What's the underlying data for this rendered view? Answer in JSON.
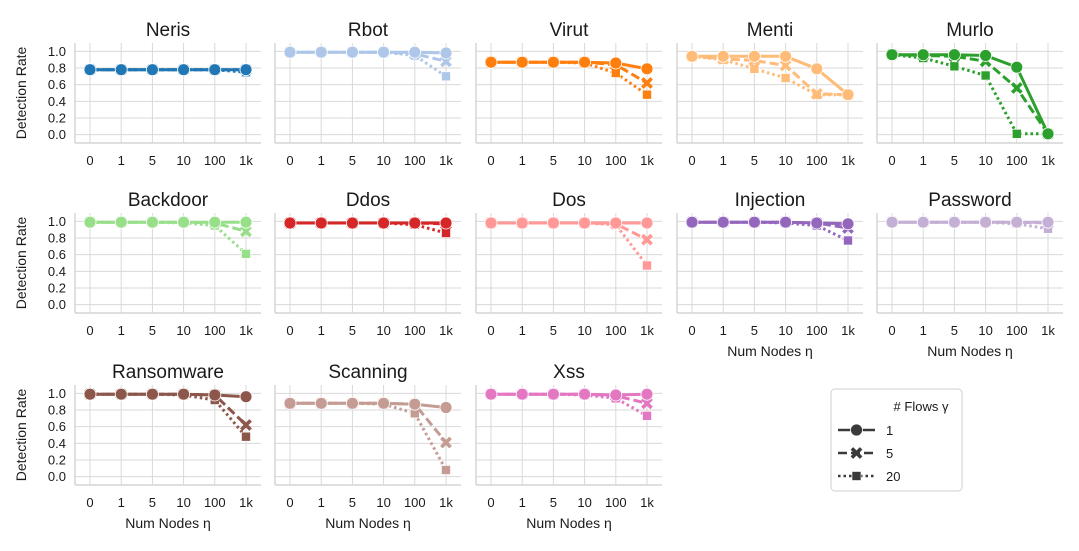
{
  "chart_data": {
    "type": "line",
    "x_categories": [
      "0",
      "1",
      "5",
      "10",
      "100",
      "1k"
    ],
    "xlabel": "Num Nodes η",
    "ylabel": "Detection Rate",
    "ylim": [
      -0.1,
      1.1
    ],
    "yticks": [
      "0.0",
      "0.2",
      "0.4",
      "0.6",
      "0.8",
      "1.0"
    ],
    "grid": true,
    "legend": {
      "title": "# Flows γ",
      "position": "bottom-right",
      "entries": [
        {
          "label": "1",
          "marker": "circle",
          "dash": "solid"
        },
        {
          "label": "5",
          "marker": "x",
          "dash": "dashed"
        },
        {
          "label": "20",
          "marker": "square",
          "dash": "dotted"
        }
      ]
    },
    "panels": [
      {
        "title": "Neris",
        "color": "#2077b4",
        "series": [
          {
            "name": "1",
            "values": [
              0.78,
              0.78,
              0.78,
              0.78,
              0.78,
              0.78
            ]
          },
          {
            "name": "5",
            "values": [
              0.78,
              0.78,
              0.78,
              0.78,
              0.78,
              0.78
            ]
          },
          {
            "name": "20",
            "values": [
              0.78,
              0.78,
              0.78,
              0.78,
              0.78,
              0.75
            ]
          }
        ]
      },
      {
        "title": "Rbot",
        "color": "#aec7e8",
        "series": [
          {
            "name": "1",
            "values": [
              0.99,
              0.99,
              0.99,
              0.99,
              0.99,
              0.98
            ]
          },
          {
            "name": "5",
            "values": [
              0.99,
              0.99,
              0.99,
              0.99,
              0.97,
              0.88
            ]
          },
          {
            "name": "20",
            "values": [
              0.99,
              0.99,
              0.99,
              0.99,
              0.95,
              0.7
            ]
          }
        ]
      },
      {
        "title": "Virut",
        "color": "#ff7f0e",
        "series": [
          {
            "name": "1",
            "values": [
              0.87,
              0.87,
              0.87,
              0.87,
              0.86,
              0.79
            ]
          },
          {
            "name": "5",
            "values": [
              0.87,
              0.87,
              0.87,
              0.87,
              0.84,
              0.62
            ]
          },
          {
            "name": "20",
            "values": [
              0.87,
              0.87,
              0.87,
              0.86,
              0.74,
              0.48
            ]
          }
        ]
      },
      {
        "title": "Menti",
        "color": "#ffbb78",
        "series": [
          {
            "name": "1",
            "values": [
              0.94,
              0.94,
              0.94,
              0.94,
              0.79,
              0.48
            ]
          },
          {
            "name": "5",
            "values": [
              0.94,
              0.91,
              0.89,
              0.83,
              0.49,
              0.48
            ]
          },
          {
            "name": "20",
            "values": [
              0.94,
              0.9,
              0.79,
              0.68,
              0.48,
              0.48
            ]
          }
        ]
      },
      {
        "title": "Murlo",
        "color": "#2ca02c",
        "series": [
          {
            "name": "1",
            "values": [
              0.96,
              0.96,
              0.96,
              0.95,
              0.81,
              0.01
            ]
          },
          {
            "name": "5",
            "values": [
              0.96,
              0.95,
              0.94,
              0.88,
              0.56,
              0.01
            ]
          },
          {
            "name": "20",
            "values": [
              0.96,
              0.92,
              0.82,
              0.71,
              0.01,
              0.01
            ]
          }
        ]
      },
      {
        "title": "Backdoor",
        "color": "#98df8a",
        "series": [
          {
            "name": "1",
            "values": [
              0.99,
              0.99,
              0.99,
              0.99,
              0.99,
              0.99
            ]
          },
          {
            "name": "5",
            "values": [
              0.99,
              0.99,
              0.99,
              0.99,
              0.98,
              0.88
            ]
          },
          {
            "name": "20",
            "values": [
              0.99,
              0.99,
              0.99,
              0.98,
              0.95,
              0.61
            ]
          }
        ]
      },
      {
        "title": "Ddos",
        "color": "#d62728",
        "series": [
          {
            "name": "1",
            "values": [
              0.98,
              0.98,
              0.98,
              0.98,
              0.98,
              0.98
            ]
          },
          {
            "name": "5",
            "values": [
              0.98,
              0.98,
              0.98,
              0.98,
              0.98,
              0.97
            ]
          },
          {
            "name": "20",
            "values": [
              0.98,
              0.98,
              0.98,
              0.98,
              0.96,
              0.86
            ]
          }
        ]
      },
      {
        "title": "Dos",
        "color": "#ff9896",
        "series": [
          {
            "name": "1",
            "values": [
              0.98,
              0.98,
              0.98,
              0.98,
              0.98,
              0.98
            ]
          },
          {
            "name": "5",
            "values": [
              0.98,
              0.98,
              0.98,
              0.98,
              0.97,
              0.78
            ]
          },
          {
            "name": "20",
            "values": [
              0.98,
              0.98,
              0.98,
              0.98,
              0.96,
              0.47
            ]
          }
        ]
      },
      {
        "title": "Injection",
        "color": "#9467bd",
        "series": [
          {
            "name": "1",
            "values": [
              0.99,
              0.99,
              0.99,
              0.99,
              0.98,
              0.97
            ]
          },
          {
            "name": "5",
            "values": [
              0.99,
              0.99,
              0.99,
              0.99,
              0.98,
              0.92
            ]
          },
          {
            "name": "20",
            "values": [
              0.99,
              0.99,
              0.99,
              0.98,
              0.95,
              0.77
            ]
          }
        ]
      },
      {
        "title": "Password",
        "color": "#c5b0d5",
        "series": [
          {
            "name": "1",
            "values": [
              0.99,
              0.99,
              0.99,
              0.99,
              0.99,
              0.99
            ]
          },
          {
            "name": "5",
            "values": [
              0.99,
              0.99,
              0.99,
              0.99,
              0.99,
              0.98
            ]
          },
          {
            "name": "20",
            "values": [
              0.99,
              0.99,
              0.99,
              0.99,
              0.97,
              0.91
            ]
          }
        ]
      },
      {
        "title": "Ransomware",
        "color": "#8c564b",
        "series": [
          {
            "name": "1",
            "values": [
              0.99,
              0.99,
              0.99,
              0.99,
              0.98,
              0.96
            ]
          },
          {
            "name": "5",
            "values": [
              0.99,
              0.99,
              0.99,
              0.99,
              0.98,
              0.62
            ]
          },
          {
            "name": "20",
            "values": [
              0.99,
              0.99,
              0.99,
              0.98,
              0.92,
              0.48
            ]
          }
        ]
      },
      {
        "title": "Scanning",
        "color": "#c49c94",
        "series": [
          {
            "name": "1",
            "values": [
              0.88,
              0.88,
              0.88,
              0.88,
              0.87,
              0.83
            ]
          },
          {
            "name": "5",
            "values": [
              0.88,
              0.88,
              0.88,
              0.88,
              0.87,
              0.41
            ]
          },
          {
            "name": "20",
            "values": [
              0.88,
              0.88,
              0.88,
              0.87,
              0.76,
              0.08
            ]
          }
        ]
      },
      {
        "title": "Xss",
        "color": "#e377c2",
        "series": [
          {
            "name": "1",
            "values": [
              0.99,
              0.99,
              0.99,
              0.99,
              0.98,
              0.99
            ]
          },
          {
            "name": "5",
            "values": [
              0.99,
              0.99,
              0.99,
              0.99,
              0.97,
              0.88
            ]
          },
          {
            "name": "20",
            "values": [
              0.99,
              0.99,
              0.99,
              0.98,
              0.94,
              0.73
            ]
          }
        ]
      }
    ]
  }
}
